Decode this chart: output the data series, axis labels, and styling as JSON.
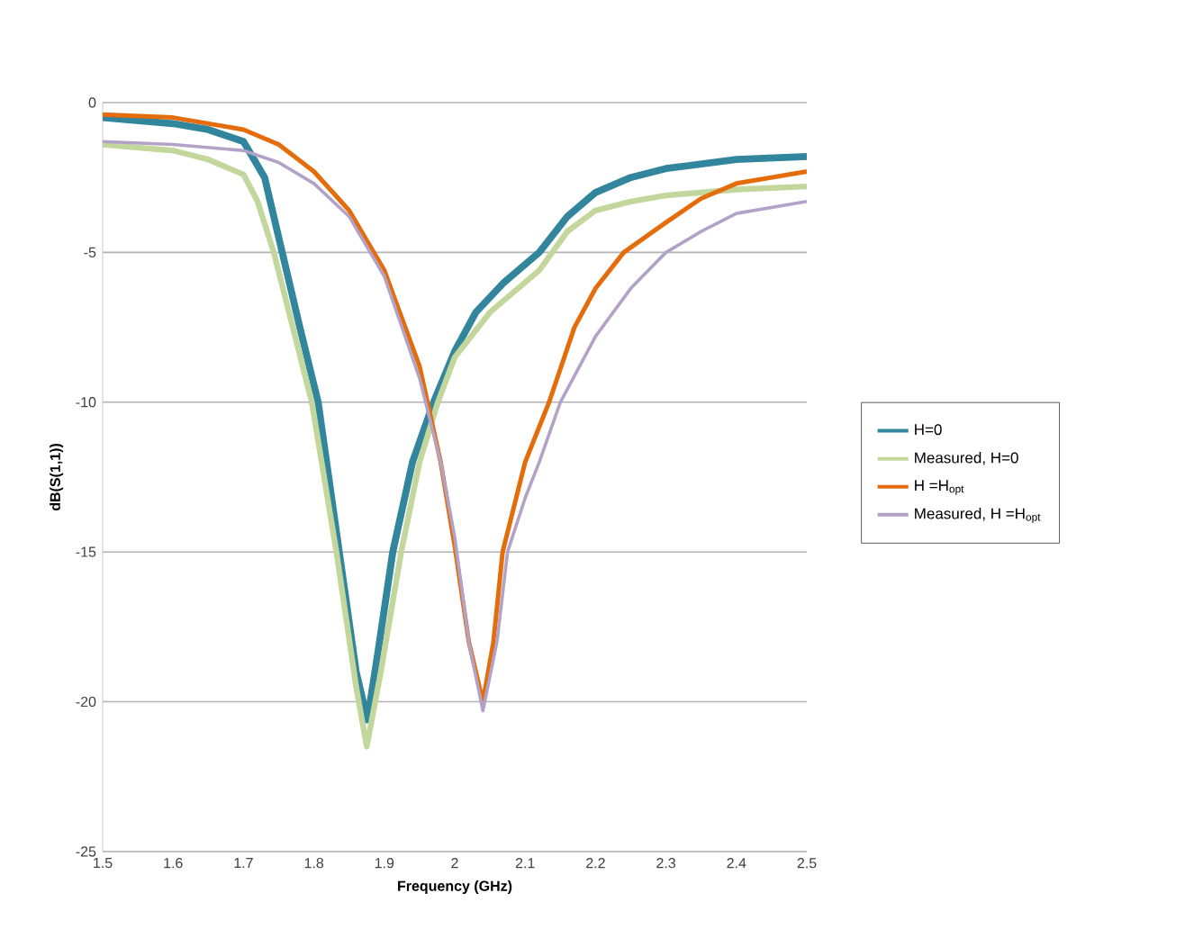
{
  "chart_data": {
    "type": "line",
    "xlabel": "Frequency (GHz)",
    "ylabel": "dB(S(1,1))",
    "xlim": [
      1.5,
      2.5
    ],
    "ylim": [
      -25,
      0
    ],
    "xticks": [
      1.5,
      1.6,
      1.7,
      1.8,
      1.9,
      2,
      2.1,
      2.2,
      2.3,
      2.4,
      2.5
    ],
    "yticks": [
      -25,
      -20,
      -15,
      -10,
      -5,
      0
    ],
    "grid": "y",
    "legend": "right",
    "series": [
      {
        "name": "H=0",
        "color": "#31859c",
        "x": [
          1.5,
          1.6,
          1.65,
          1.7,
          1.73,
          1.755,
          1.78,
          1.806,
          1.836,
          1.86,
          1.876,
          1.89,
          1.912,
          1.94,
          1.97,
          2.0,
          2.03,
          2.07,
          2.12,
          2.16,
          2.2,
          2.25,
          2.3,
          2.4,
          2.5
        ],
        "values": [
          -0.5,
          -0.7,
          -0.9,
          -1.3,
          -2.5,
          -5,
          -7.5,
          -10,
          -15,
          -19,
          -20.6,
          -18.5,
          -15,
          -12,
          -10,
          -8.3,
          -7,
          -6,
          -5,
          -3.8,
          -3,
          -2.5,
          -2.2,
          -1.9,
          -1.8
        ]
      },
      {
        "name": "Measured, H=0",
        "color": "#c3d69b",
        "x": [
          1.5,
          1.6,
          1.65,
          1.7,
          1.72,
          1.743,
          1.77,
          1.797,
          1.832,
          1.86,
          1.875,
          1.895,
          1.924,
          1.95,
          1.976,
          2.0,
          2.05,
          2.12,
          2.16,
          2.2,
          2.25,
          2.3,
          2.4,
          2.5
        ],
        "values": [
          -1.4,
          -1.6,
          -1.9,
          -2.4,
          -3.3,
          -5,
          -7.5,
          -10,
          -15,
          -19.5,
          -21.5,
          -19,
          -15,
          -12,
          -10,
          -8.5,
          -7,
          -5.6,
          -4.3,
          -3.6,
          -3.3,
          -3.1,
          -2.9,
          -2.8
        ]
      },
      {
        "name": "H =H$_{opt}$",
        "color": "#e46c0a",
        "x": [
          1.5,
          1.6,
          1.7,
          1.75,
          1.8,
          1.85,
          1.9,
          1.95,
          1.98,
          2.0,
          2.02,
          2.04,
          2.055,
          2.068,
          2.1,
          2.134,
          2.17,
          2.2,
          2.24,
          2.3,
          2.35,
          2.4,
          2.5
        ],
        "values": [
          -0.4,
          -0.5,
          -0.9,
          -1.4,
          -2.3,
          -3.6,
          -5.6,
          -8.8,
          -12,
          -14.8,
          -18,
          -20,
          -18,
          -15,
          -12,
          -10,
          -7.5,
          -6.2,
          -5,
          -4,
          -3.2,
          -2.7,
          -2.3
        ]
      },
      {
        "name": "Measured, H =H$_{opt}$",
        "color": "#b3a2c7",
        "x": [
          1.5,
          1.6,
          1.7,
          1.75,
          1.8,
          1.85,
          1.88,
          1.9,
          1.95,
          1.98,
          2.0,
          2.02,
          2.04,
          2.06,
          2.075,
          2.1,
          2.12,
          2.15,
          2.2,
          2.25,
          2.3,
          2.35,
          2.4,
          2.5
        ],
        "values": [
          -1.3,
          -1.4,
          -1.6,
          -2,
          -2.7,
          -3.8,
          -5,
          -5.8,
          -9.2,
          -12,
          -14.5,
          -18,
          -20.3,
          -18,
          -15,
          -13.2,
          -12,
          -10,
          -7.8,
          -6.2,
          -5,
          -4.3,
          -3.7,
          -3.3
        ]
      }
    ]
  }
}
